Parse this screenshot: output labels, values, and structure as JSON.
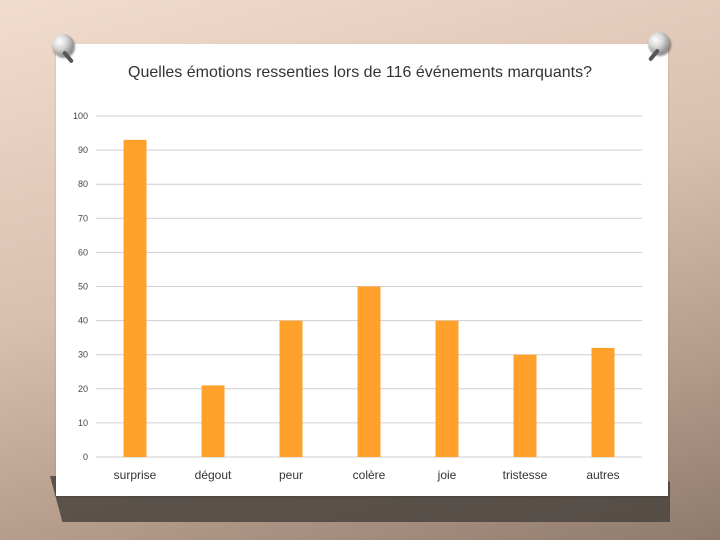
{
  "colors": {
    "bar": "#ffa12b",
    "grid": "#cfcfcf",
    "paper": "#ffffff"
  },
  "chart_data": {
    "type": "bar",
    "title": "Quelles émotions ressenties lors de 116 événements marquants?",
    "categories": [
      "surprise",
      "dégout",
      "peur",
      "colère",
      "joie",
      "tristesse",
      "autres"
    ],
    "values": [
      93,
      21,
      40,
      50,
      40,
      30,
      32
    ],
    "yticks": [
      0,
      10,
      20,
      30,
      40,
      50,
      60,
      70,
      80,
      90,
      100
    ],
    "ylim": [
      0,
      100
    ],
    "xlabel": "",
    "ylabel": "",
    "grid": true,
    "legend": "none"
  }
}
